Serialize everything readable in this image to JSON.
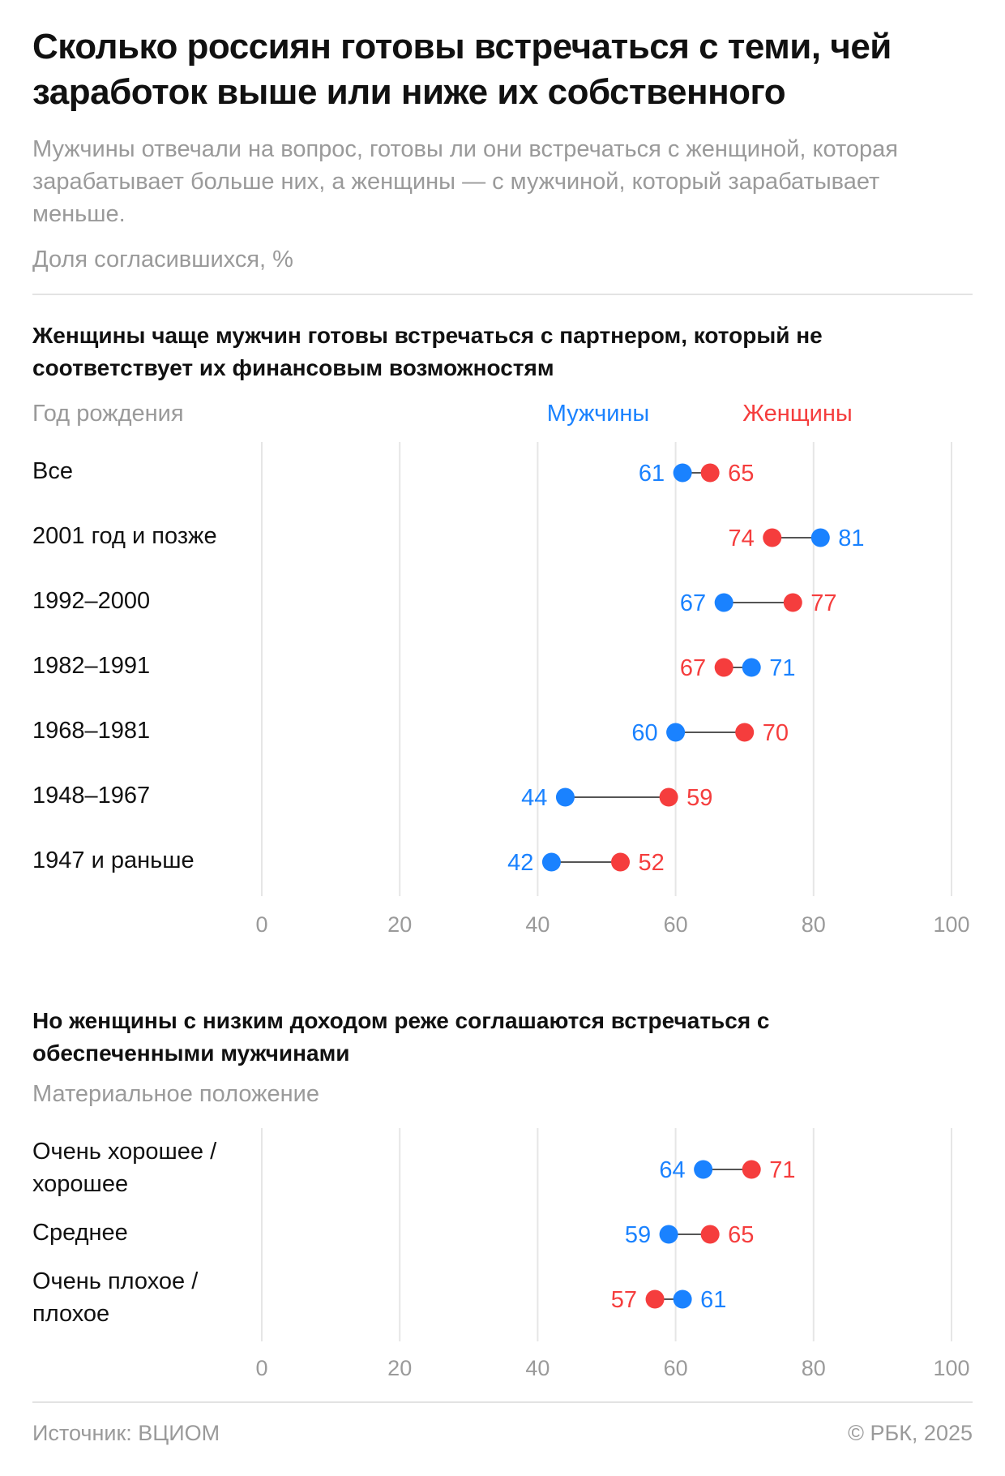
{
  "title": "Сколько россиян готовы встречаться с теми, чей заработок выше или ниже их собственного",
  "subtitle": "Мужчины отвечали на вопрос, готовы ли они встречаться с женщиной, которая зарабатывает больше них, а женщины — с мужчиной, который зарабатывает меньше.",
  "unit": "Доля согласившихся, %",
  "colors": {
    "men": "#1a82ff",
    "women": "#f53d3d",
    "grid": "#e6e6e6",
    "connector": "#555555",
    "axis_text": "#9a9a9a"
  },
  "legend": {
    "men": "Мужчины",
    "women": "Женщины"
  },
  "chart_data": [
    {
      "type": "dumbbell",
      "title": "Женщины чаще мужчин готовы встречаться с партнером, который не соответствует их финансовым возможностям",
      "category_title": "Год рождения",
      "xlim": [
        0,
        100
      ],
      "xticks": [
        "0",
        "20",
        "40",
        "60",
        "80",
        "100"
      ],
      "grid": true,
      "legend_position": "top",
      "categories": [
        "Все",
        "2001 год и позже",
        "1992–2000",
        "1982–1991",
        "1968–1981",
        "1948–1967",
        "1947 и раньше"
      ],
      "series": [
        {
          "name": "Мужчины",
          "values": [
            61,
            81,
            67,
            71,
            60,
            44,
            42
          ]
        },
        {
          "name": "Женщины",
          "values": [
            65,
            74,
            77,
            67,
            70,
            59,
            52
          ]
        }
      ]
    },
    {
      "type": "dumbbell",
      "title": "Но женщины с низким доходом реже соглашаются встречаться с обеспеченными мужчинами",
      "category_title": "Материальное положение",
      "xlim": [
        0,
        100
      ],
      "xticks": [
        "0",
        "20",
        "40",
        "60",
        "80",
        "100"
      ],
      "grid": true,
      "categories": [
        "Очень хорошее / хорошее",
        "Среднее",
        "Очень плохое / плохое"
      ],
      "series": [
        {
          "name": "Мужчины",
          "values": [
            64,
            59,
            61
          ]
        },
        {
          "name": "Женщины",
          "values": [
            71,
            65,
            57
          ]
        }
      ]
    }
  ],
  "footer": {
    "source": "Источник: ВЦИОМ",
    "copyright": "© РБК, 2025"
  }
}
